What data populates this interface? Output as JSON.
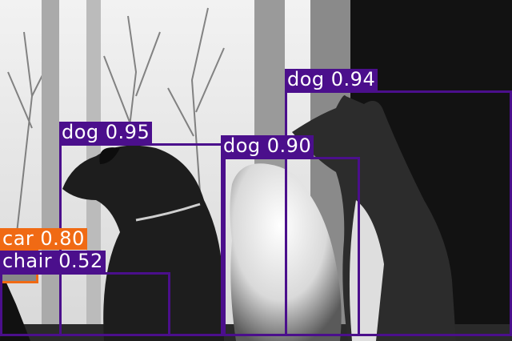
{
  "colors": {
    "dog": "#4b0f8c",
    "chair": "#4b0f8c",
    "car": "#f06a14"
  },
  "detections": [
    {
      "label": "dog 0.94",
      "cls": "dog"
    },
    {
      "label": "dog 0.95",
      "cls": "dog"
    },
    {
      "label": "dog 0.90",
      "cls": "dog"
    },
    {
      "label": "car 0.80",
      "cls": "car"
    },
    {
      "label": "chair 0.52",
      "cls": "chair"
    }
  ]
}
